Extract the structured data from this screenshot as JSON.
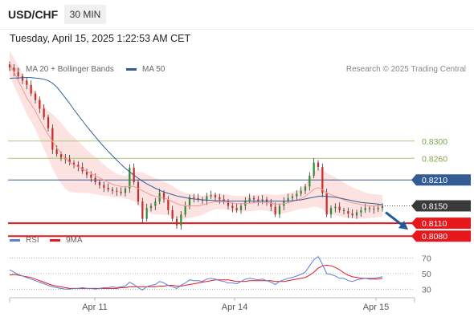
{
  "header": {
    "symbol": "USD/CHF",
    "timeframe": "30 MIN"
  },
  "datetime": "Tuesday, April 15, 2025 1:22:53 AM CET",
  "legend_main": [
    {
      "label": "MA 20 + Bollinger Bands",
      "color": "#f19a97"
    },
    {
      "label": "MA 50",
      "color": "#345c94"
    }
  ],
  "credit": "Research © 2025 Trading Central",
  "legend_rsi": [
    {
      "label": "RSI",
      "color": "#5b7fd6"
    },
    {
      "label": "9MA",
      "color": "#e8171b"
    }
  ],
  "colors": {
    "resistance": "#a6c978",
    "pivot": "#345c94",
    "support": "#e8171b",
    "price_tag": "#3a3a3a"
  },
  "chart_data": [
    {
      "type": "candlestick",
      "series": [
        {
          "name": "MA 20 + Bollinger Bands"
        },
        {
          "name": "MA 50"
        }
      ],
      "ylim": [
        0.806,
        0.845
      ],
      "x_ticks": [
        "Apr 11",
        "Apr 14",
        "Apr 15"
      ],
      "levels": [
        {
          "label": "0.8300",
          "value": 0.83,
          "kind": "resistance"
        },
        {
          "label": "0.8260",
          "value": 0.826,
          "kind": "resistance"
        },
        {
          "label": "0.8210",
          "value": 0.821,
          "kind": "pivot"
        },
        {
          "label": "0.8150",
          "value": 0.815,
          "kind": "last"
        },
        {
          "label": "0.8110",
          "value": 0.811,
          "kind": "support"
        },
        {
          "label": "0.8080",
          "value": 0.808,
          "kind": "support"
        }
      ],
      "close": [
        0.847,
        0.846,
        0.845,
        0.844,
        0.843,
        0.841,
        0.8395,
        0.8375,
        0.8355,
        0.833,
        0.828,
        0.827,
        0.8262,
        0.8258,
        0.825,
        0.8245,
        0.824,
        0.823,
        0.8222,
        0.8215,
        0.8205,
        0.8198,
        0.8192,
        0.8188,
        0.8185,
        0.8183,
        0.818,
        0.819,
        0.8238,
        0.8205,
        0.816,
        0.812,
        0.8145,
        0.815,
        0.816,
        0.818,
        0.8165,
        0.814,
        0.812,
        0.8105,
        0.813,
        0.815,
        0.817,
        0.8168,
        0.8165,
        0.8162,
        0.8172,
        0.8175,
        0.817,
        0.8165,
        0.816,
        0.815,
        0.8145,
        0.814,
        0.815,
        0.8162,
        0.8168,
        0.8165,
        0.816,
        0.8165,
        0.8158,
        0.8148,
        0.813,
        0.815,
        0.8162,
        0.8168,
        0.8172,
        0.8178,
        0.8185,
        0.8195,
        0.822,
        0.825,
        0.824,
        0.818,
        0.813,
        0.8145,
        0.8148,
        0.814,
        0.8138,
        0.8132,
        0.8128,
        0.8135,
        0.814,
        0.8145,
        0.8143,
        0.8142,
        0.8145,
        0.815
      ],
      "ma20": [
        0.848,
        0.846,
        0.844,
        0.842,
        0.84,
        0.8385,
        0.837,
        0.835,
        0.8332,
        0.8315,
        0.83,
        0.8285,
        0.8272,
        0.826,
        0.825,
        0.8245,
        0.824,
        0.8235,
        0.823,
        0.8225,
        0.822,
        0.8215,
        0.821,
        0.8205,
        0.82,
        0.8197,
        0.8195,
        0.8193,
        0.8195,
        0.8195,
        0.819,
        0.8185,
        0.818,
        0.8175,
        0.8172,
        0.817,
        0.8168,
        0.8165,
        0.816,
        0.8155,
        0.8152,
        0.815,
        0.815,
        0.815,
        0.815,
        0.8152,
        0.8155,
        0.8158,
        0.816,
        0.816,
        0.816,
        0.8158,
        0.8156,
        0.8155,
        0.8155,
        0.8155,
        0.8156,
        0.8157,
        0.8158,
        0.8158,
        0.8158,
        0.8156,
        0.8154,
        0.8154,
        0.8155,
        0.8157,
        0.816,
        0.8163,
        0.8167,
        0.8172,
        0.818,
        0.8188,
        0.8192,
        0.8188,
        0.818,
        0.8176,
        0.8172,
        0.8168,
        0.8164,
        0.816,
        0.8157,
        0.8155,
        0.8153,
        0.8151,
        0.815,
        0.815,
        0.815,
        0.815
      ],
      "bb_width": [
        0.003,
        0.0032,
        0.0034,
        0.0036,
        0.0038,
        0.004,
        0.0043,
        0.0046,
        0.005,
        0.0055,
        0.0062,
        0.0068,
        0.007,
        0.007,
        0.0068,
        0.0064,
        0.006,
        0.0055,
        0.005,
        0.0046,
        0.0043,
        0.004,
        0.0036,
        0.0032,
        0.003,
        0.0028,
        0.0026,
        0.0026,
        0.003,
        0.0034,
        0.0038,
        0.0042,
        0.0043,
        0.0043,
        0.0042,
        0.004,
        0.0038,
        0.0037,
        0.0036,
        0.0034,
        0.0032,
        0.003,
        0.0028,
        0.0026,
        0.0024,
        0.0022,
        0.002,
        0.0019,
        0.0018,
        0.0018,
        0.0018,
        0.0018,
        0.0018,
        0.0018,
        0.0018,
        0.0018,
        0.0018,
        0.0018,
        0.0018,
        0.0018,
        0.0019,
        0.002,
        0.0021,
        0.0022,
        0.0022,
        0.0022,
        0.0022,
        0.0022,
        0.0024,
        0.0028,
        0.0034,
        0.004,
        0.0045,
        0.0046,
        0.0046,
        0.0045,
        0.0044,
        0.0042,
        0.004,
        0.0038,
        0.0036,
        0.0034,
        0.0032,
        0.003,
        0.0028,
        0.0027,
        0.0026,
        0.0025
      ],
      "ma50": [
        0.8445,
        0.8446,
        0.8446,
        0.8447,
        0.8447,
        0.8447,
        0.8446,
        0.8445,
        0.8443,
        0.844,
        0.8434,
        0.8425,
        0.8413,
        0.84,
        0.8387,
        0.8373,
        0.836,
        0.8347,
        0.8334,
        0.8322,
        0.831,
        0.8298,
        0.8287,
        0.8276,
        0.8266,
        0.8256,
        0.8246,
        0.8237,
        0.8229,
        0.8221,
        0.8214,
        0.8207,
        0.8201,
        0.8196,
        0.8191,
        0.8186,
        0.8182,
        0.8179,
        0.8176,
        0.8173,
        0.8171,
        0.8169,
        0.8167,
        0.8166,
        0.8165,
        0.8164,
        0.8163,
        0.8163,
        0.8162,
        0.8162,
        0.8162,
        0.8161,
        0.8161,
        0.8161,
        0.8161,
        0.8161,
        0.8161,
        0.8161,
        0.8161,
        0.8161,
        0.8161,
        0.8161,
        0.8161,
        0.8161,
        0.8161,
        0.8161,
        0.8162,
        0.8163,
        0.8164,
        0.8166,
        0.8168,
        0.817,
        0.8172,
        0.8173,
        0.8172,
        0.8171,
        0.817,
        0.8168,
        0.8166,
        0.8164,
        0.8162,
        0.816,
        0.8158,
        0.8157,
        0.8156,
        0.8155,
        0.8154,
        0.8153
      ]
    },
    {
      "type": "line",
      "series": [
        {
          "name": "RSI",
          "values": [
            55,
            52,
            49,
            47,
            45,
            43,
            41,
            39,
            37,
            35,
            33,
            32,
            31,
            30,
            30,
            31,
            31,
            32,
            31,
            31,
            30,
            31,
            32,
            32,
            33,
            32,
            33,
            34,
            39,
            36,
            32,
            29,
            33,
            35,
            36,
            40,
            38,
            35,
            33,
            31,
            35,
            38,
            42,
            41,
            41,
            40,
            43,
            44,
            43,
            41,
            40,
            38,
            38,
            37,
            40,
            43,
            44,
            43,
            42,
            43,
            41,
            39,
            36,
            40,
            42,
            44,
            45,
            47,
            49,
            52,
            60,
            68,
            72,
            62,
            50,
            49,
            47,
            44,
            44,
            41,
            40,
            42,
            43,
            44,
            44,
            44,
            45,
            46
          ]
        },
        {
          "name": "9MA",
          "values": [
            48,
            49,
            48,
            47,
            46,
            45,
            43,
            41,
            39,
            37,
            35,
            34,
            33,
            32,
            31,
            31,
            31,
            31,
            31,
            31,
            31,
            31,
            31,
            31,
            31,
            31,
            32,
            32,
            33,
            33,
            33,
            33,
            33,
            33,
            33,
            34,
            34,
            35,
            35,
            34,
            34,
            35,
            36,
            37,
            38,
            39,
            40,
            41,
            42,
            42,
            42,
            42,
            41,
            40,
            40,
            40,
            41,
            41,
            41,
            41,
            41,
            41,
            40,
            40,
            40,
            41,
            42,
            43,
            44,
            45,
            48,
            52,
            57,
            60,
            61,
            60,
            58,
            55,
            51,
            48,
            46,
            45,
            44,
            44,
            43,
            43,
            43,
            44
          ]
        }
      ],
      "ylim": [
        20,
        80
      ],
      "y_ticks": [
        70,
        50,
        30
      ],
      "x_ticks": [
        "Apr 11",
        "Apr 14",
        "Apr 15"
      ]
    }
  ]
}
